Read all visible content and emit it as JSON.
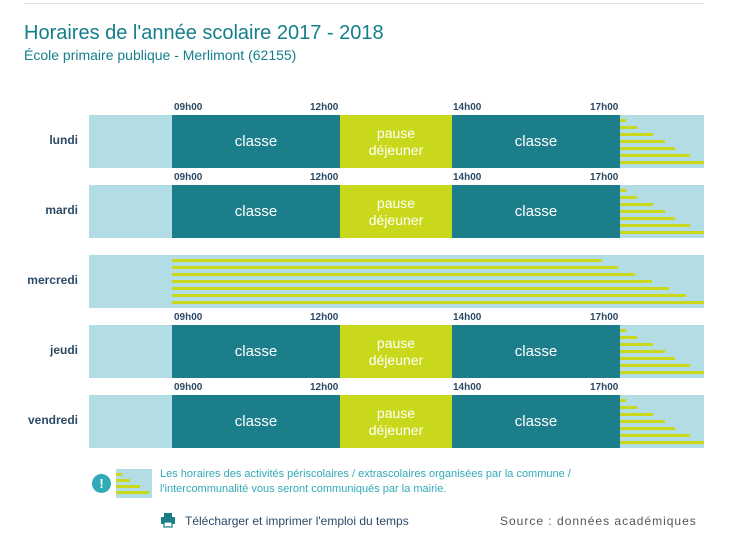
{
  "header": {
    "title": "Horaires de l'année scolaire 2017 - 2018",
    "subtitle": "École primaire publique - Merlimont (62155)"
  },
  "times": [
    "09h00",
    "12h00",
    "14h00",
    "17h00"
  ],
  "days": [
    {
      "name": "lundi",
      "has_school": true,
      "segments": [
        "classe",
        "pause\ndéjeuner",
        "classe"
      ]
    },
    {
      "name": "mardi",
      "has_school": true,
      "segments": [
        "classe",
        "pause\ndéjeuner",
        "classe"
      ]
    },
    {
      "name": "mercredi",
      "has_school": false,
      "segments": []
    },
    {
      "name": "jeudi",
      "has_school": true,
      "segments": [
        "classe",
        "pause\ndéjeuner",
        "classe"
      ]
    },
    {
      "name": "vendredi",
      "has_school": true,
      "segments": [
        "classe",
        "pause\ndéjeuner",
        "classe"
      ]
    }
  ],
  "labels": {
    "classe": "classe",
    "pause": "pause\ndéjeuner"
  },
  "legend": {
    "text": "Les horaires des activités périscolaires / extrascolaires organisées par la commune / l'intercommunalité vous seront communiqués par la mairie."
  },
  "footer": {
    "print_link": "Télécharger et imprimer l'emploi du temps",
    "source": "Source : données académiques"
  },
  "colors": {
    "classe": "#1b7e8a",
    "pause": "#c9d81a",
    "background_row": "#b3dde5",
    "title": "#137f8a"
  },
  "icons": {
    "info": "info-icon",
    "print": "printer-icon"
  }
}
